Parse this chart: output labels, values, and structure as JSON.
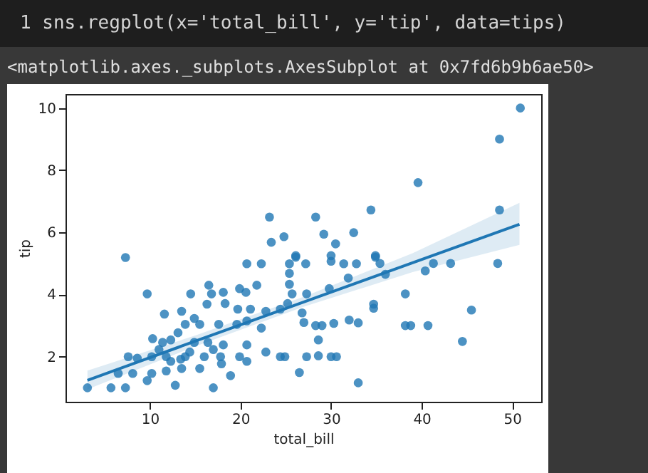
{
  "chart_data": {
    "type": "scatter",
    "xlabel": "total_bill",
    "ylabel": "tip",
    "annotations": [
      "1 sns.regplot(x='total_bill', y='tip', data=tips)",
      "<matplotlib.axes._subplots.AxesSubplot at 0x7fd6b9b6ae50>"
    ],
    "xlim": [
      0.68,
      53.2
    ],
    "ylim": [
      0.55,
      10.45
    ],
    "xticks": [
      10,
      20,
      30,
      40,
      50
    ],
    "yticks": [
      2,
      4,
      6,
      8,
      10
    ],
    "grid": false,
    "series": [
      {
        "marker": "circle",
        "color": "#1f77b4",
        "x": [
          23.2,
          24.8,
          23.4,
          7.3,
          26.1,
          50.9,
          48.6,
          39.6,
          48.6,
          34.4,
          28.3,
          29.2,
          32.5,
          30.5,
          26.1,
          30.0,
          34.9,
          30.0,
          34.9,
          25.4,
          27.2,
          31.4,
          32.8,
          35.4,
          41.3,
          43.2,
          48.4,
          40.4,
          36.0,
          31.9,
          25.4,
          25.4,
          27.3,
          25.7,
          29.8,
          38.2,
          25.2,
          34.7,
          34.7,
          45.5,
          26.8,
          27.0,
          28.3,
          29.0,
          30.3,
          32.0,
          33.0,
          38.2,
          38.8,
          40.7,
          44.5,
          28.6,
          24.9,
          27.3,
          28.6,
          30.0,
          30.6,
          26.5,
          33.0,
          9.7,
          14.5,
          11.6,
          13.5,
          20.7,
          22.3,
          16.5,
          16.8,
          18.1,
          19.9,
          20.6,
          21.8,
          16.3,
          18.3,
          19.7,
          21.1,
          22.8,
          14.9,
          13.9,
          15.5,
          17.6,
          19.6,
          20.7,
          22.3,
          24.4,
          13.1,
          12.3,
          11.4,
          10.3,
          14.9,
          16.4,
          18.1,
          20.7,
          22.8,
          19.9,
          24.4,
          7.6,
          8.6,
          10.2,
          11.8,
          13.9,
          16.0,
          17.8,
          6.5,
          8.1,
          10.2,
          11.8,
          13.5,
          15.5,
          17.9,
          9.7,
          12.8,
          3.1,
          5.7,
          7.3,
          17.0,
          18.9,
          20.7,
          17.0,
          14.4,
          11.0,
          13.4,
          12.3
        ],
        "values": [
          6.49,
          5.86,
          5.68,
          5.19,
          5.2,
          10.0,
          9.0,
          7.6,
          6.72,
          6.72,
          6.49,
          5.94,
          5.99,
          5.63,
          5.25,
          5.25,
          5.25,
          5.07,
          5.2,
          4.99,
          4.99,
          4.99,
          4.99,
          5.0,
          5.0,
          5.0,
          5.0,
          4.76,
          4.65,
          4.53,
          4.68,
          4.33,
          4.02,
          4.02,
          4.19,
          4.02,
          3.71,
          3.69,
          3.56,
          3.5,
          3.41,
          3.1,
          3.0,
          3.0,
          3.07,
          3.18,
          3.09,
          3.0,
          3.0,
          3.0,
          2.49,
          2.54,
          2.0,
          2.0,
          2.03,
          2.0,
          2.0,
          1.49,
          1.16,
          4.02,
          4.02,
          3.37,
          3.46,
          4.99,
          4.99,
          4.3,
          4.02,
          4.07,
          4.19,
          4.07,
          4.3,
          3.69,
          3.71,
          3.53,
          3.53,
          3.46,
          3.23,
          3.04,
          3.04,
          3.04,
          3.04,
          3.15,
          2.92,
          3.53,
          2.77,
          2.54,
          2.46,
          2.58,
          2.46,
          2.46,
          2.38,
          2.38,
          2.15,
          2.0,
          2.0,
          2.0,
          1.95,
          2.0,
          2.0,
          2.0,
          2.0,
          2.0,
          1.46,
          1.46,
          1.46,
          1.54,
          1.62,
          1.62,
          1.77,
          1.23,
          1.08,
          1.0,
          1.0,
          1.0,
          1.0,
          1.39,
          1.85,
          2.23,
          2.15,
          2.23,
          1.92,
          1.85
        ]
      },
      {
        "type": "line",
        "color": "#1f77b4",
        "x": [
          3.1,
          15,
          27,
          39,
          50.8
        ],
        "values": [
          1.24,
          2.5,
          3.76,
          5.02,
          6.26
        ],
        "lower": [
          0.95,
          2.33,
          3.61,
          4.72,
          5.6
        ],
        "upper": [
          1.55,
          2.68,
          3.93,
          5.33,
          6.95
        ]
      }
    ]
  }
}
